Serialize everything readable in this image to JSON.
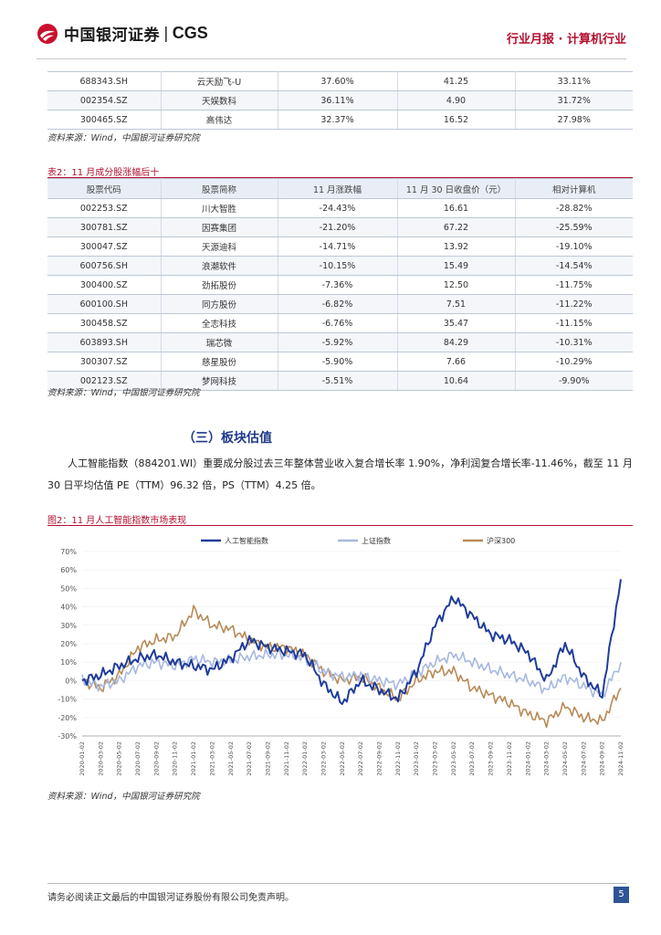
{
  "header": {
    "logo_cn": "中国银河证券",
    "logo_sep": "|",
    "logo_en": "CGS",
    "report_label": "行业月报 · 计算机行业"
  },
  "table_top": {
    "rows": [
      [
        "688343.SH",
        "云天励飞-U",
        "37.60%",
        "41.25",
        "33.11%"
      ],
      [
        "002354.SZ",
        "天娱数科",
        "36.11%",
        "4.90",
        "31.72%"
      ],
      [
        "300465.SZ",
        "高伟达",
        "32.37%",
        "16.52",
        "27.98%"
      ]
    ],
    "source": "资料来源：Wind，中国银河证券研究院"
  },
  "table2": {
    "caption": "表2：11 月成分股涨幅后十",
    "headers": [
      "股票代码",
      "股票简称",
      "11 月涨跌幅",
      "11 月 30 日收盘价（元）",
      "相对计算机"
    ],
    "rows": [
      [
        "002253.SZ",
        "川大智胜",
        "-24.43%",
        "16.61",
        "-28.82%"
      ],
      [
        "300781.SZ",
        "因赛集团",
        "-21.20%",
        "67.22",
        "-25.59%"
      ],
      [
        "300047.SZ",
        "天源迪科",
        "-14.71%",
        "13.92",
        "-19.10%"
      ],
      [
        "600756.SH",
        "浪潮软件",
        "-10.15%",
        "15.49",
        "-14.54%"
      ],
      [
        "300400.SZ",
        "劲拓股份",
        "-7.36%",
        "12.50",
        "-11.75%"
      ],
      [
        "600100.SH",
        "同方股份",
        "-6.82%",
        "7.51",
        "-11.22%"
      ],
      [
        "300458.SZ",
        "全志科技",
        "-6.76%",
        "35.47",
        "-11.15%"
      ],
      [
        "603893.SH",
        "瑞芯微",
        "-5.92%",
        "84.29",
        "-10.31%"
      ],
      [
        "300307.SZ",
        "慈星股份",
        "-5.90%",
        "7.66",
        "-10.29%"
      ],
      [
        "002123.SZ",
        "梦网科技",
        "-5.51%",
        "10.64",
        "-9.90%"
      ]
    ],
    "source": "资料来源：Wind，中国银河证券研究院"
  },
  "section": {
    "title": "（三）板块估值",
    "paragraph": "人工智能指数（884201.WI）重要成分股过去三年整体营业收入复合增长率 1.90%，净利润复合增长率-11.46%，截至 11 月 30 日平均估值 PE（TTM）96.32 倍，PS（TTM）4.25 倍。"
  },
  "figure2": {
    "caption": "图2：11 月人工智能指数市场表现",
    "source": "资料来源：Wind，中国银河证券研究院"
  },
  "chart_data": {
    "type": "line",
    "title": "11 月人工智能指数市场表现",
    "xlabel": "",
    "ylabel": "",
    "ylim": [
      -30,
      70
    ],
    "yticks": [
      "70%",
      "60%",
      "50%",
      "40%",
      "30%",
      "20%",
      "10%",
      "0%",
      "-10%",
      "-20%",
      "-30%"
    ],
    "x": [
      "2020-01-02",
      "2020-03-02",
      "2020-05-02",
      "2020-07-02",
      "2020-09-02",
      "2020-11-02",
      "2021-01-02",
      "2021-03-02",
      "2021-05-02",
      "2021-07-02",
      "2021-09-02",
      "2021-11-02",
      "2022-01-02",
      "2022-03-02",
      "2022-05-02",
      "2022-07-02",
      "2022-09-02",
      "2022-11-02",
      "2023-01-02",
      "2023-03-02",
      "2023-05-02",
      "2023-07-02",
      "2023-09-02",
      "2023-11-02",
      "2024-01-02",
      "2024-03-02",
      "2024-05-02",
      "2024-07-02",
      "2024-09-02",
      "2024-11-02"
    ],
    "series": [
      {
        "name": "人工智能指数",
        "color": "#1f3d99",
        "values": [
          0,
          3,
          8,
          12,
          14,
          10,
          8,
          6,
          12,
          22,
          18,
          16,
          14,
          -2,
          -12,
          0,
          -5,
          -10,
          5,
          30,
          45,
          35,
          25,
          22,
          15,
          0,
          20,
          2,
          -8,
          55
        ]
      },
      {
        "name": "上证指数",
        "color": "#a7b8e0",
        "values": [
          0,
          -3,
          0,
          8,
          10,
          8,
          12,
          10,
          11,
          13,
          14,
          14,
          12,
          5,
          2,
          3,
          0,
          -2,
          4,
          10,
          14,
          10,
          6,
          3,
          0,
          -5,
          2,
          -3,
          -8,
          10
        ]
      },
      {
        "name": "沪深300",
        "color": "#b88a56",
        "values": [
          0,
          -4,
          3,
          18,
          22,
          24,
          38,
          30,
          28,
          22,
          18,
          18,
          14,
          5,
          0,
          2,
          -4,
          -10,
          0,
          5,
          5,
          -4,
          -8,
          -12,
          -18,
          -22,
          -14,
          -20,
          -22,
          -4
        ]
      }
    ],
    "legend": "top-center"
  },
  "footer": {
    "text": "请务必阅读正文最后的中国银河证券股份有限公司免责声明。",
    "page": "5"
  }
}
